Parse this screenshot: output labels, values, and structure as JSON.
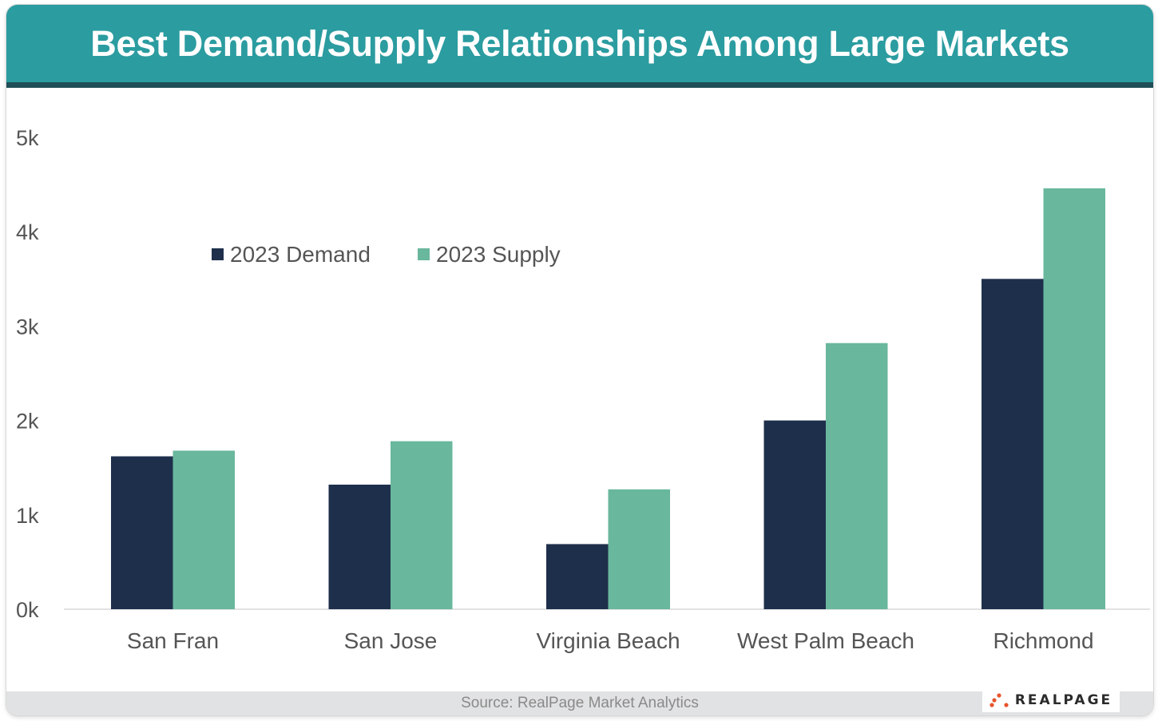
{
  "title": "Best Demand/Supply Relationships Among Large Markets",
  "source": "Source: RealPage Market Analytics",
  "logo": {
    "text": "REALPAGE",
    "icon": "realpage-dots-icon"
  },
  "colors": {
    "header": "#2b9ca0",
    "header_stripe": "#1f4e57",
    "demand": "#1e2f4b",
    "supply": "#69b79d",
    "logo_dots": "#e8542c"
  },
  "chart_data": {
    "type": "bar",
    "title": "Best Demand/Supply Relationships Among Large Markets",
    "xlabel": "",
    "ylabel": "",
    "categories": [
      "San Fran",
      "San Jose",
      "Virginia Beach",
      "West Palm Beach",
      "Richmond"
    ],
    "series": [
      {
        "name": "2023 Demand",
        "values": [
          1620,
          1320,
          690,
          2000,
          3500
        ]
      },
      {
        "name": "2023 Supply",
        "values": [
          1680,
          1780,
          1270,
          2820,
          4460
        ]
      }
    ],
    "ylim": [
      0,
      5000
    ],
    "yticks": [
      0,
      1000,
      2000,
      3000,
      4000,
      5000
    ],
    "ytick_labels": [
      "0k",
      "1k",
      "2k",
      "3k",
      "4k",
      "5k"
    ],
    "grid": false,
    "legend_position": "top-left"
  }
}
